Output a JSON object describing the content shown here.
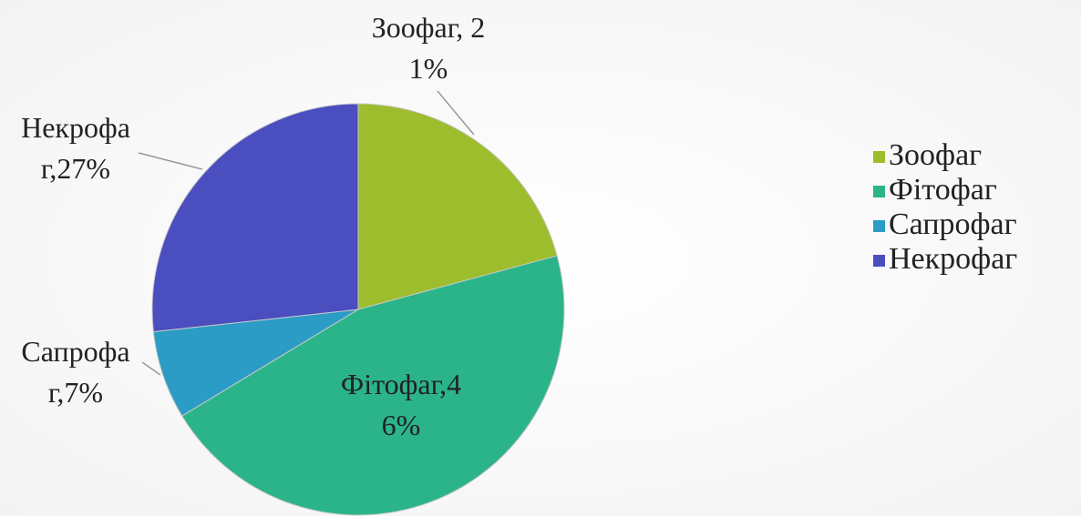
{
  "chart_data": {
    "type": "pie",
    "categories": [
      "Зоофаг",
      "Фітофаг",
      "Сапрофаг",
      "Некрофаг"
    ],
    "values": [
      21,
      46,
      7,
      27
    ],
    "value_labels": [
      "Зоофаг, 21%",
      "Фітофаг,46%",
      "Сапрофаг,7%",
      "Некрофаг,27%"
    ],
    "colors": [
      "#9dbd2c",
      "#2bb48a",
      "#2a9cc6",
      "#4a4ebf"
    ],
    "legend": "right"
  }
}
